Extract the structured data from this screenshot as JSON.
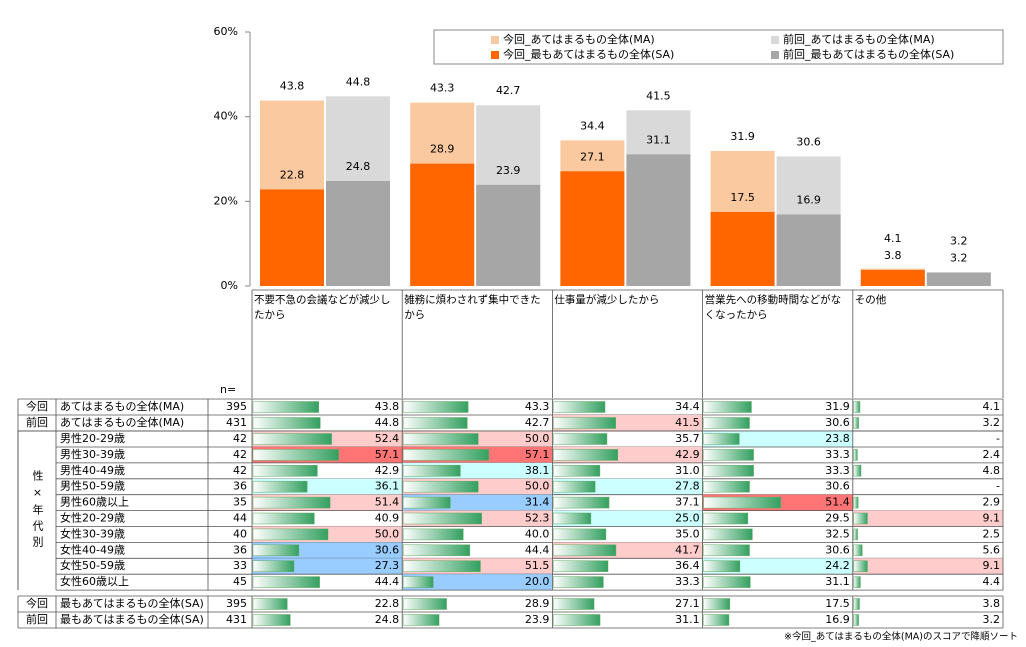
{
  "chart_data": {
    "type": "bar",
    "categories": [
      "不要不急の会議などが減少したから",
      "雑務に煩わされず集中できたから",
      "仕事量が減少したから",
      "営業先への移動時間などがなくなったから",
      "その他"
    ],
    "series": [
      {
        "name": "今回_あてはまるもの全体(MA)",
        "color": "#fbc9a0",
        "values": [
          43.8,
          43.3,
          34.4,
          31.9,
          4.1
        ]
      },
      {
        "name": "前回_あてはまるもの全体(MA)",
        "color": "#d9d9d9",
        "values": [
          44.8,
          42.7,
          41.5,
          30.6,
          3.2
        ]
      },
      {
        "name": "今回_最もあてはまるもの全体(SA)",
        "color": "#ff6600",
        "values": [
          22.8,
          28.9,
          27.1,
          17.5,
          3.8
        ]
      },
      {
        "name": "前回_最もあてはまるもの全体(SA)",
        "color": "#a6a6a6",
        "values": [
          24.8,
          23.9,
          31.1,
          16.9,
          3.2
        ]
      }
    ],
    "ylim": [
      0,
      60
    ],
    "yticks": [
      {
        "value": 0,
        "label": "0%"
      },
      {
        "value": 20,
        "label": "20%"
      },
      {
        "value": 40,
        "label": "40%"
      },
      {
        "value": 60,
        "label": "60%"
      }
    ]
  },
  "table": {
    "n_header": "n=",
    "group_label": "性×年代別",
    "rows": [
      {
        "period": "今回",
        "label": "あてはまるもの全体(MA)",
        "n": 395,
        "values": [
          "43.8",
          "43.3",
          "34.4",
          "31.9",
          "4.1"
        ],
        "colors": [
          null,
          null,
          null,
          null,
          null
        ]
      },
      {
        "period": "前回",
        "label": "あてはまるもの全体(MA)",
        "n": 431,
        "values": [
          "44.8",
          "42.7",
          "41.5",
          "30.6",
          "3.2"
        ],
        "colors": [
          null,
          null,
          "#ffcccc",
          null,
          null
        ]
      },
      {
        "label": "男性20-29歳",
        "n": 42,
        "values": [
          "52.4",
          "50.0",
          "35.7",
          "23.8",
          "-"
        ],
        "colors": [
          "#ffcccc",
          "#ffcccc",
          null,
          "#ccffff",
          null
        ]
      },
      {
        "label": "男性30-39歳",
        "n": 42,
        "values": [
          "57.1",
          "57.1",
          "42.9",
          "33.3",
          "2.4"
        ],
        "colors": [
          "#ff7575",
          "#ff7575",
          "#ffcccc",
          null,
          null
        ]
      },
      {
        "label": "男性40-49歳",
        "n": 42,
        "values": [
          "42.9",
          "38.1",
          "31.0",
          "33.3",
          "4.8"
        ],
        "colors": [
          null,
          "#ccffff",
          null,
          null,
          null
        ]
      },
      {
        "label": "男性50-59歳",
        "n": 36,
        "values": [
          "36.1",
          "50.0",
          "27.8",
          "30.6",
          "-"
        ],
        "colors": [
          "#ccffff",
          "#ffcccc",
          "#ccffff",
          null,
          null
        ]
      },
      {
        "label": "男性60歳以上",
        "n": 35,
        "values": [
          "51.4",
          "31.4",
          "37.1",
          "51.4",
          "2.9"
        ],
        "colors": [
          "#ffcccc",
          "#99ccff",
          null,
          "#ff7575",
          null
        ]
      },
      {
        "label": "女性20-29歳",
        "n": 44,
        "values": [
          "40.9",
          "52.3",
          "25.0",
          "29.5",
          "9.1"
        ],
        "colors": [
          null,
          "#ffcccc",
          "#ccffff",
          null,
          "#ffcccc"
        ]
      },
      {
        "label": "女性30-39歳",
        "n": 40,
        "values": [
          "50.0",
          "40.0",
          "35.0",
          "32.5",
          "2.5"
        ],
        "colors": [
          "#ffcccc",
          null,
          null,
          null,
          null
        ]
      },
      {
        "label": "女性40-49歳",
        "n": 36,
        "values": [
          "30.6",
          "44.4",
          "41.7",
          "30.6",
          "5.6"
        ],
        "colors": [
          "#99ccff",
          null,
          "#ffcccc",
          null,
          null
        ]
      },
      {
        "label": "女性50-59歳",
        "n": 33,
        "values": [
          "27.3",
          "51.5",
          "36.4",
          "24.2",
          "9.1"
        ],
        "colors": [
          "#99ccff",
          "#ffcccc",
          null,
          "#ccffff",
          "#ffcccc"
        ]
      },
      {
        "label": "女性60歳以上",
        "n": 45,
        "values": [
          "44.4",
          "20.0",
          "33.3",
          "31.1",
          "4.4"
        ],
        "colors": [
          null,
          "#99ccff",
          null,
          null,
          null
        ]
      },
      {
        "period": "今回",
        "label": "最もあてはまるもの全体(SA)",
        "n": 395,
        "values": [
          "22.8",
          "28.9",
          "27.1",
          "17.5",
          "3.8"
        ],
        "colors": [
          null,
          null,
          null,
          null,
          null
        ]
      },
      {
        "period": "前回",
        "label": "最もあてはまるもの全体(SA)",
        "n": 431,
        "values": [
          "24.8",
          "23.9",
          "31.1",
          "16.9",
          "3.2"
        ],
        "colors": [
          null,
          null,
          null,
          null,
          null
        ]
      }
    ]
  },
  "note": "※今回_あてはまるもの全体(MA)のスコアで降順ソート"
}
